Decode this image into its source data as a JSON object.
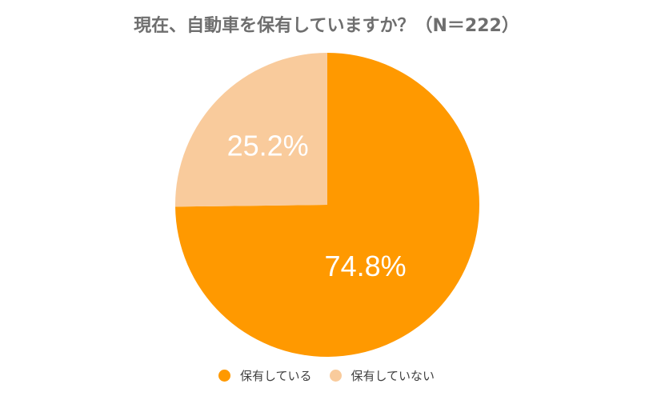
{
  "chart_data": {
    "type": "pie",
    "title": "現在、自動車を保有していますか？（N＝222）",
    "categories": [
      "保有している",
      "保有していない"
    ],
    "values": [
      74.8,
      25.2
    ],
    "labels": [
      "74.8%",
      "25.2%"
    ],
    "colors": [
      "#FF9900",
      "#F9CB9C"
    ],
    "legend": "bottom"
  }
}
